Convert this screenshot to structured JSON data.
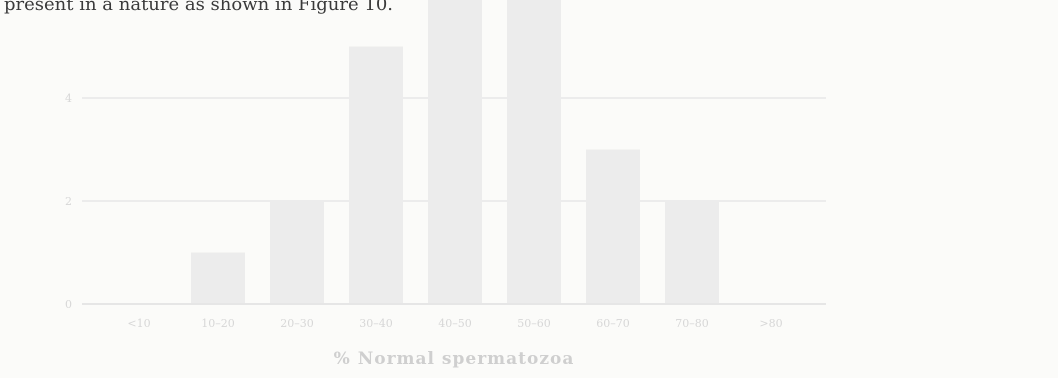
{
  "header": {
    "text": "present in a nature as shown in Figure 10."
  },
  "chart_data": {
    "type": "bar",
    "categories": [
      "<10",
      "10–20",
      "20–30",
      "30–40",
      "40–50",
      "50–60",
      "60–70",
      "70–80",
      ">80"
    ],
    "values": [
      0,
      1,
      2,
      5,
      6,
      6,
      3,
      2,
      0
    ],
    "xlabel": "% Normal spermatozoa",
    "ylabel": "",
    "ylim": [
      0,
      6
    ],
    "yticks": [
      0,
      2,
      4
    ],
    "grid": true,
    "bar_color": "#ececec"
  }
}
